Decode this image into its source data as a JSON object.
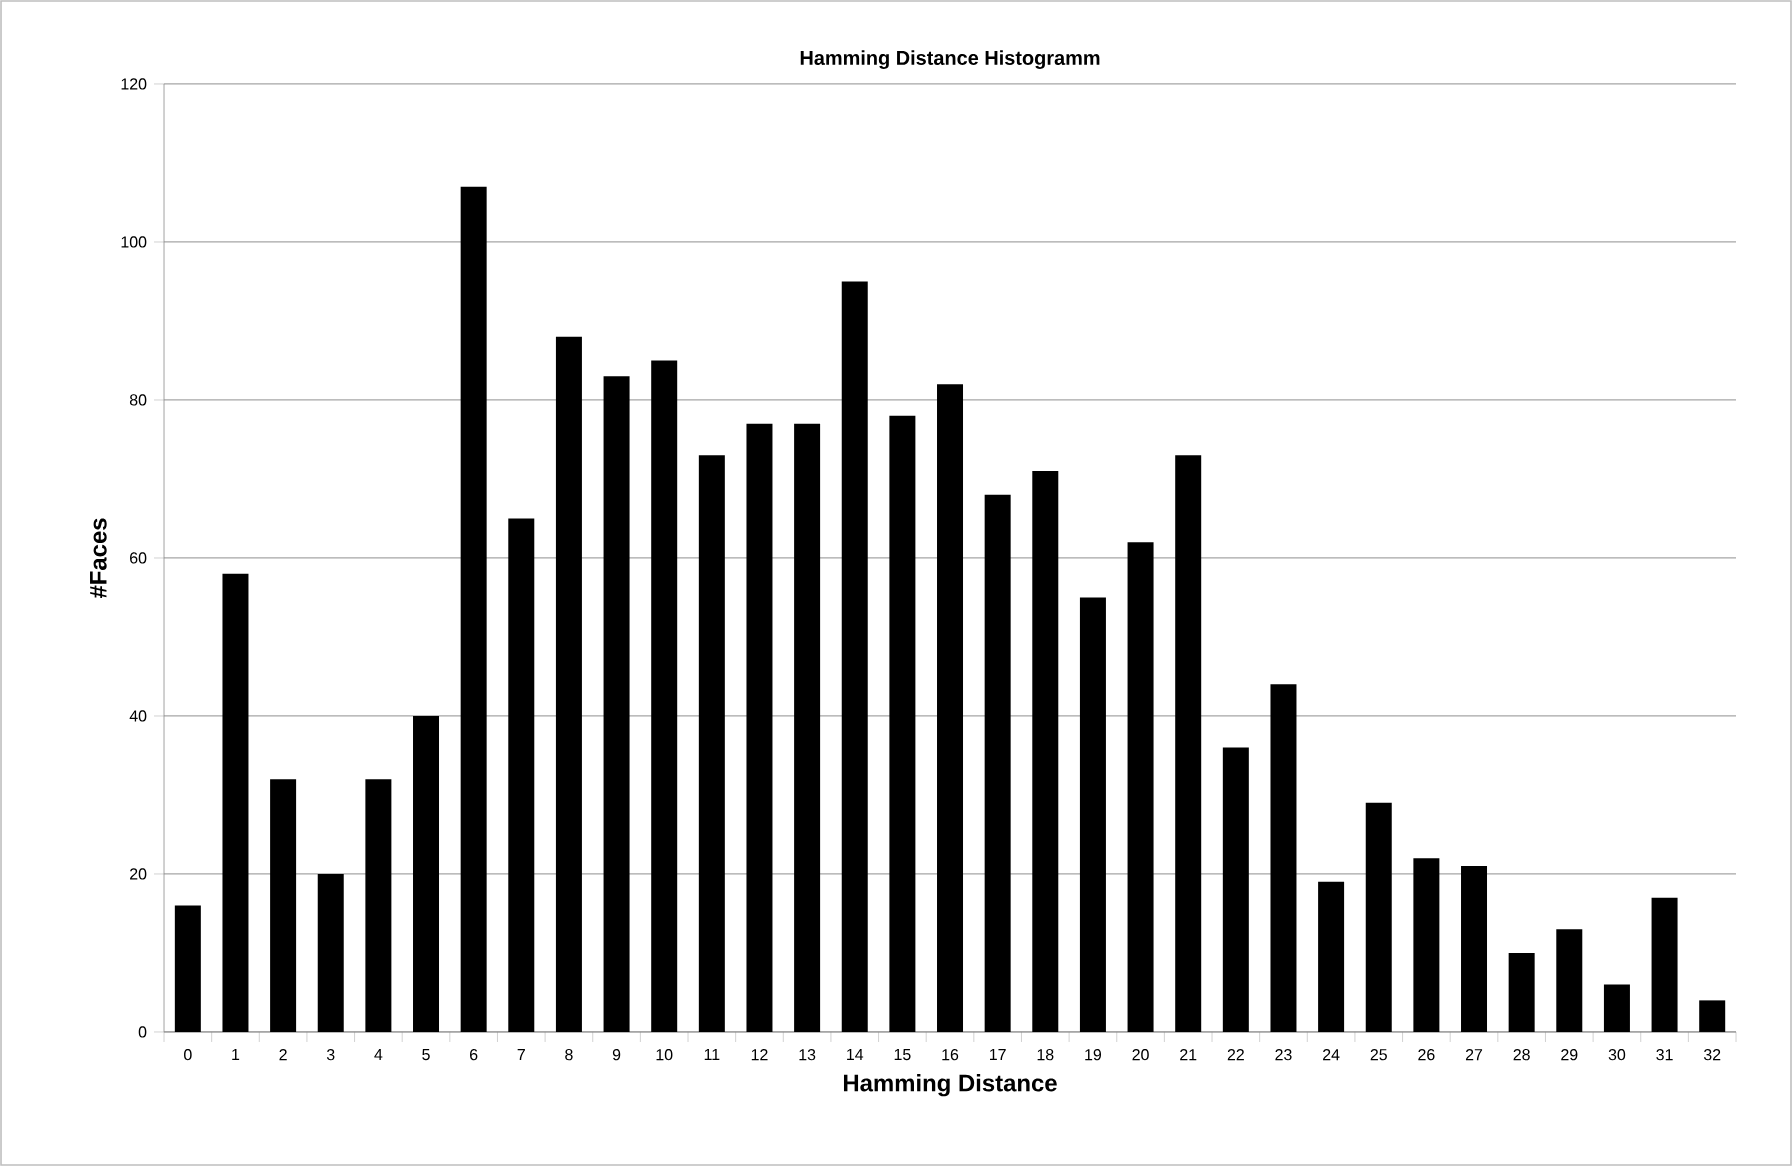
{
  "chart_data": {
    "type": "bar",
    "title": "Hamming Distance Histogramm",
    "xlabel": "Hamming Distance",
    "ylabel": "#Faces",
    "categories": [
      "0",
      "1",
      "2",
      "3",
      "4",
      "5",
      "6",
      "7",
      "8",
      "9",
      "10",
      "11",
      "12",
      "13",
      "14",
      "15",
      "16",
      "17",
      "18",
      "19",
      "20",
      "21",
      "22",
      "23",
      "24",
      "25",
      "26",
      "27",
      "28",
      "29",
      "30",
      "31",
      "32"
    ],
    "values": [
      16,
      58,
      32,
      20,
      32,
      40,
      107,
      65,
      88,
      83,
      85,
      73,
      77,
      77,
      95,
      78,
      82,
      68,
      71,
      55,
      62,
      73,
      36,
      44,
      19,
      29,
      22,
      21,
      10,
      13,
      6,
      17,
      4
    ],
    "color": "#000000",
    "ylim": [
      0,
      120
    ],
    "yticks": [
      0,
      20,
      40,
      60,
      80,
      100,
      120
    ],
    "grid": "y"
  }
}
